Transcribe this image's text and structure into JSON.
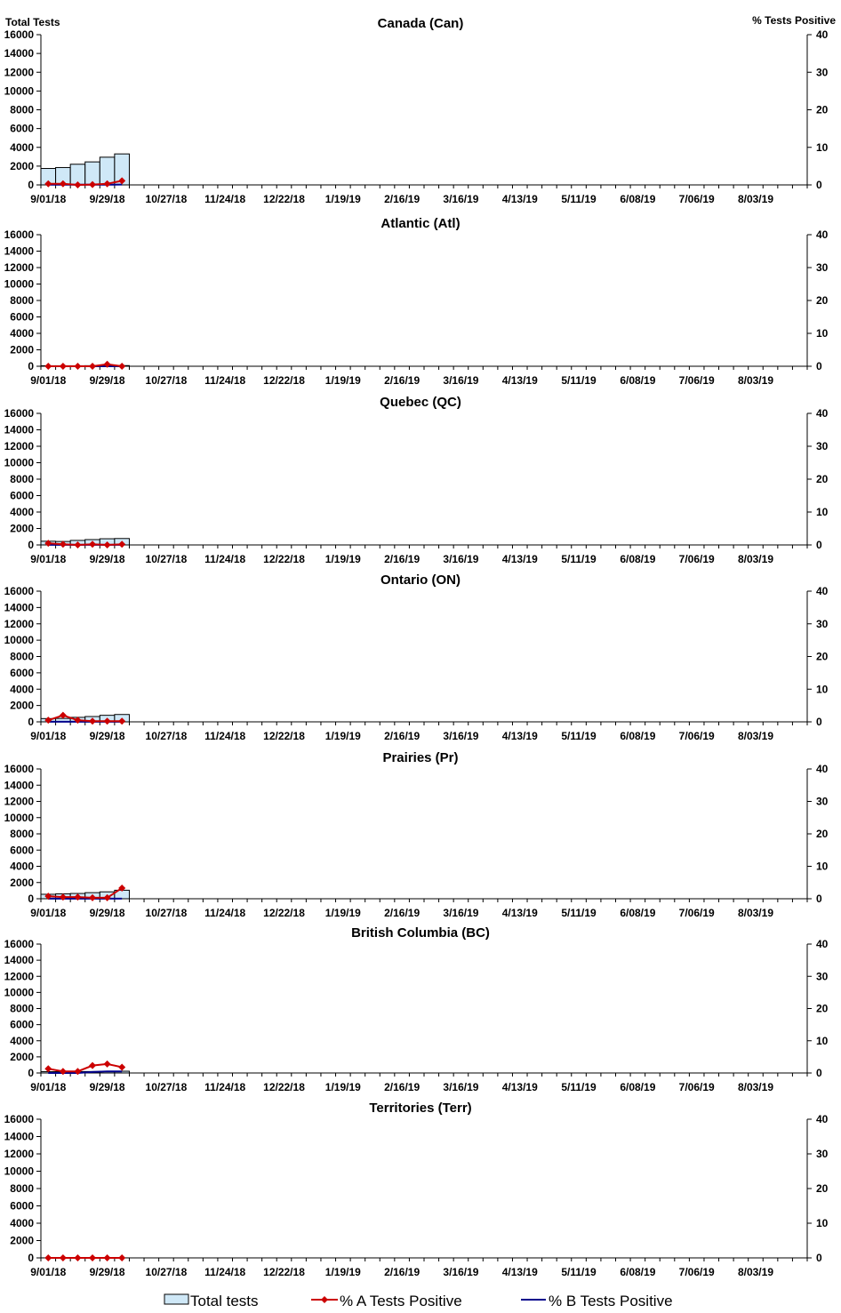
{
  "chart_data": [
    {
      "type": "bar",
      "title": "Canada (Can)",
      "ylabel": "Total Tests",
      "y2label": "% Tests Positive",
      "ylim": [
        0,
        16000
      ],
      "y2lim": [
        0,
        40
      ],
      "yticks": [
        "0",
        "2000",
        "4000",
        "6000",
        "8000",
        "10000",
        "12000",
        "14000",
        "16000"
      ],
      "y2ticks": [
        "0",
        "10",
        "20",
        "30",
        "40"
      ],
      "xticklabels": [
        "9/01/18",
        "9/29/18",
        "10/27/18",
        "11/24/18",
        "12/22/18",
        "1/19/19",
        "2/16/19",
        "3/16/19",
        "4/13/19",
        "5/11/19",
        "6/08/19",
        "7/06/19",
        "8/03/19"
      ],
      "total_tests": [
        1750,
        1850,
        2200,
        2450,
        2950,
        3300
      ],
      "pct_a_positive": [
        0.3,
        0.3,
        0.0,
        0.1,
        0.3,
        1.1
      ],
      "pct_b_positive": [
        0.05,
        0.05,
        0.05,
        0.05,
        0.05,
        0.1
      ]
    },
    {
      "type": "bar",
      "title": "Atlantic (Atl)",
      "ylabel": "",
      "y2label": "",
      "ylim": [
        0,
        16000
      ],
      "y2lim": [
        0,
        40
      ],
      "yticks": [
        "0",
        "2000",
        "4000",
        "6000",
        "8000",
        "10000",
        "12000",
        "14000",
        "16000"
      ],
      "y2ticks": [
        "0",
        "10",
        "20",
        "30",
        "40"
      ],
      "xticklabels": [
        "9/01/18",
        "9/29/18",
        "10/27/18",
        "11/24/18",
        "12/22/18",
        "1/19/19",
        "2/16/19",
        "3/16/19",
        "4/13/19",
        "5/11/19",
        "6/08/19",
        "7/06/19",
        "8/03/19"
      ],
      "total_tests": [
        60,
        60,
        60,
        70,
        70,
        80
      ],
      "pct_a_positive": [
        0.0,
        0.0,
        0.0,
        0.0,
        0.6,
        0.0
      ],
      "pct_b_positive": [
        0.0,
        0.0,
        0.0,
        0.0,
        0.0,
        0.0
      ]
    },
    {
      "type": "bar",
      "title": "Quebec (QC)",
      "ylabel": "",
      "y2label": "",
      "ylim": [
        0,
        16000
      ],
      "y2lim": [
        0,
        40
      ],
      "yticks": [
        "0",
        "2000",
        "4000",
        "6000",
        "8000",
        "10000",
        "12000",
        "14000",
        "16000"
      ],
      "y2ticks": [
        "0",
        "10",
        "20",
        "30",
        "40"
      ],
      "xticklabels": [
        "9/01/18",
        "9/29/18",
        "10/27/18",
        "11/24/18",
        "12/22/18",
        "1/19/19",
        "2/16/19",
        "3/16/19",
        "4/13/19",
        "5/11/19",
        "6/08/19",
        "7/06/19",
        "8/03/19"
      ],
      "total_tests": [
        450,
        420,
        550,
        650,
        750,
        780
      ],
      "pct_a_positive": [
        0.5,
        0.2,
        0.0,
        0.2,
        0.0,
        0.2
      ],
      "pct_b_positive": [
        0.05,
        0.05,
        0.05,
        0.05,
        0.05,
        0.05
      ]
    },
    {
      "type": "bar",
      "title": "Ontario (ON)",
      "ylabel": "",
      "y2label": "",
      "ylim": [
        0,
        16000
      ],
      "y2lim": [
        0,
        40
      ],
      "yticks": [
        "0",
        "2000",
        "4000",
        "6000",
        "8000",
        "10000",
        "12000",
        "14000",
        "16000"
      ],
      "y2ticks": [
        "0",
        "10",
        "20",
        "30",
        "40"
      ],
      "xticklabels": [
        "9/01/18",
        "9/29/18",
        "10/27/18",
        "11/24/18",
        "12/22/18",
        "1/19/19",
        "2/16/19",
        "3/16/19",
        "4/13/19",
        "5/11/19",
        "6/08/19",
        "7/06/19",
        "8/03/19"
      ],
      "total_tests": [
        400,
        420,
        550,
        650,
        800,
        900
      ],
      "pct_a_positive": [
        0.5,
        2.0,
        0.5,
        0.2,
        0.2,
        0.2
      ],
      "pct_b_positive": [
        0.05,
        0.05,
        0.05,
        0.05,
        0.05,
        0.05
      ]
    },
    {
      "type": "bar",
      "title": "Prairies (Pr)",
      "ylabel": "",
      "y2label": "",
      "ylim": [
        0,
        16000
      ],
      "y2lim": [
        0,
        40
      ],
      "yticks": [
        "0",
        "2000",
        "4000",
        "6000",
        "8000",
        "10000",
        "12000",
        "14000",
        "16000"
      ],
      "y2ticks": [
        "0",
        "10",
        "20",
        "30",
        "40"
      ],
      "xticklabels": [
        "9/01/18",
        "9/29/18",
        "10/27/18",
        "11/24/18",
        "12/22/18",
        "1/19/19",
        "2/16/19",
        "3/16/19",
        "4/13/19",
        "5/11/19",
        "6/08/19",
        "7/06/19",
        "8/03/19"
      ],
      "total_tests": [
        550,
        600,
        650,
        750,
        850,
        1050
      ],
      "pct_a_positive": [
        0.8,
        0.5,
        0.5,
        0.3,
        0.3,
        3.3
      ],
      "pct_b_positive": [
        0.05,
        0.05,
        0.05,
        0.05,
        0.05,
        0.05
      ]
    },
    {
      "type": "bar",
      "title": "British Columbia (BC)",
      "ylabel": "",
      "y2label": "",
      "ylim": [
        0,
        16000
      ],
      "y2lim": [
        0,
        40
      ],
      "yticks": [
        "0",
        "2000",
        "4000",
        "6000",
        "8000",
        "10000",
        "12000",
        "14000",
        "16000"
      ],
      "y2ticks": [
        "0",
        "10",
        "20",
        "30",
        "40"
      ],
      "xticklabels": [
        "9/01/18",
        "9/29/18",
        "10/27/18",
        "11/24/18",
        "12/22/18",
        "1/19/19",
        "2/16/19",
        "3/16/19",
        "4/13/19",
        "5/11/19",
        "6/08/19",
        "7/06/19",
        "8/03/19"
      ],
      "total_tests": [
        160,
        160,
        170,
        180,
        200,
        220
      ],
      "pct_a_positive": [
        1.3,
        0.5,
        0.5,
        2.3,
        2.8,
        1.8
      ],
      "pct_b_positive": [
        0.0,
        0.0,
        0.0,
        0.3,
        0.5,
        0.5
      ]
    },
    {
      "type": "bar",
      "title": "Territories (Terr)",
      "ylabel": "",
      "y2label": "",
      "ylim": [
        0,
        16000
      ],
      "y2lim": [
        0,
        40
      ],
      "yticks": [
        "0",
        "2000",
        "4000",
        "6000",
        "8000",
        "10000",
        "12000",
        "14000",
        "16000"
      ],
      "y2ticks": [
        "0",
        "10",
        "20",
        "30",
        "40"
      ],
      "xticklabels": [
        "9/01/18",
        "9/29/18",
        "10/27/18",
        "11/24/18",
        "12/22/18",
        "1/19/19",
        "2/16/19",
        "3/16/19",
        "4/13/19",
        "5/11/19",
        "6/08/19",
        "7/06/19",
        "8/03/19"
      ],
      "total_tests": [
        5,
        5,
        5,
        5,
        5,
        5
      ],
      "pct_a_positive": [
        0.0,
        0.0,
        0.0,
        0.0,
        0.0,
        0.0
      ],
      "pct_b_positive": [
        0.0,
        0.0,
        0.0,
        0.0,
        0.0,
        0.0
      ]
    }
  ],
  "legend": {
    "total": "Total tests",
    "a": "% A Tests Positive",
    "b": "% B Tests Positive"
  },
  "colors": {
    "bar_fill": "#cfe8f7",
    "bar_stroke": "#000000",
    "series_a": "#cc0000",
    "series_b": "#00008b",
    "axis": "#000000"
  }
}
